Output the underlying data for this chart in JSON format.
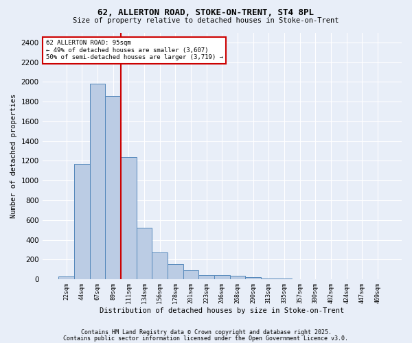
{
  "title1": "62, ALLERTON ROAD, STOKE-ON-TRENT, ST4 8PL",
  "title2": "Size of property relative to detached houses in Stoke-on-Trent",
  "xlabel": "Distribution of detached houses by size in Stoke-on-Trent",
  "ylabel": "Number of detached properties",
  "bar_labels": [
    "22sqm",
    "44sqm",
    "67sqm",
    "89sqm",
    "111sqm",
    "134sqm",
    "156sqm",
    "178sqm",
    "201sqm",
    "223sqm",
    "246sqm",
    "268sqm",
    "290sqm",
    "313sqm",
    "335sqm",
    "357sqm",
    "380sqm",
    "402sqm",
    "424sqm",
    "447sqm",
    "469sqm"
  ],
  "bar_values": [
    25,
    1170,
    1985,
    1860,
    1240,
    520,
    275,
    155,
    90,
    45,
    40,
    38,
    20,
    8,
    5,
    3,
    2,
    2,
    1,
    1,
    1
  ],
  "bar_color": "#BBCCE4",
  "bar_edge_color": "#5588BB",
  "bg_color": "#E8EEF8",
  "grid_color": "#ffffff",
  "annotation_text": "62 ALLERTON ROAD: 95sqm\n← 49% of detached houses are smaller (3,607)\n50% of semi-detached houses are larger (3,719) →",
  "annotation_box_color": "#ffffff",
  "annotation_box_edge": "#cc0000",
  "red_line_color": "#cc0000",
  "ylim": [
    0,
    2500
  ],
  "yticks": [
    0,
    200,
    400,
    600,
    800,
    1000,
    1200,
    1400,
    1600,
    1800,
    2000,
    2200,
    2400
  ],
  "footer1": "Contains HM Land Registry data © Crown copyright and database right 2025.",
  "footer2": "Contains public sector information licensed under the Open Government Licence v3.0."
}
